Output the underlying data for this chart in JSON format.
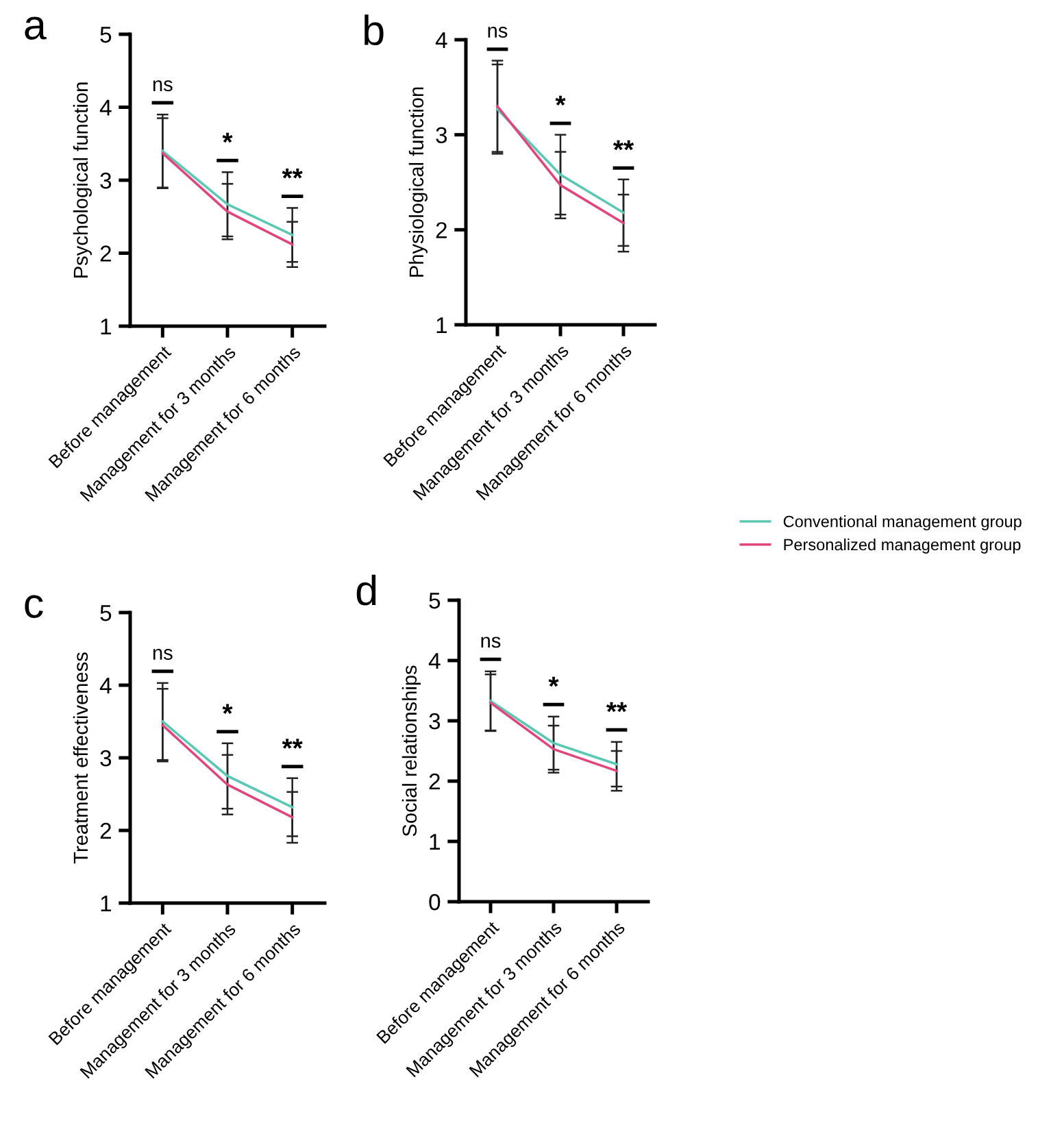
{
  "chart_data": [
    {
      "type": "line",
      "title": "a",
      "ylabel": "Psychological function",
      "categories": [
        "Before management",
        "Management for 3 months",
        "Management for 6 months"
      ],
      "ylim": [
        1,
        5
      ],
      "yticks": [
        1,
        2,
        3,
        4,
        5
      ],
      "grid": false,
      "legend": "right",
      "marker": "none",
      "line_style": "solid",
      "series": [
        {
          "name": "Conventional management group",
          "color": "#5cc8b4",
          "values": [
            3.4,
            2.67,
            2.25
          ],
          "errors": [
            0.5,
            0.44,
            0.37
          ]
        },
        {
          "name": "Personalized management group",
          "color": "#e0457b",
          "values": [
            3.37,
            2.57,
            2.12
          ],
          "errors": [
            0.48,
            0.38,
            0.31
          ]
        }
      ],
      "annotations": [
        "ns",
        "*",
        "**"
      ]
    },
    {
      "type": "line",
      "title": "b",
      "ylabel": "Physiological function",
      "categories": [
        "Before management",
        "Management for 3 months",
        "Management for 6 months"
      ],
      "ylim": [
        1,
        4
      ],
      "yticks": [
        1,
        2,
        3,
        4
      ],
      "grid": false,
      "legend": "right",
      "marker": "none",
      "line_style": "solid",
      "series": [
        {
          "name": "Conventional management group",
          "color": "#5cc8b4",
          "values": [
            3.27,
            2.58,
            2.18
          ],
          "errors": [
            0.47,
            0.42,
            0.35
          ]
        },
        {
          "name": "Personalized management group",
          "color": "#e0457b",
          "values": [
            3.3,
            2.47,
            2.07
          ],
          "errors": [
            0.48,
            0.35,
            0.3
          ]
        }
      ],
      "annotations": [
        "ns",
        "*",
        "**"
      ]
    },
    {
      "type": "line",
      "title": "c",
      "ylabel": "Treatment effectiveness",
      "categories": [
        "Before management",
        "Management for 3 months",
        "Management for 6 months"
      ],
      "ylim": [
        1,
        5
      ],
      "yticks": [
        1,
        2,
        3,
        4,
        5
      ],
      "grid": false,
      "legend": "right",
      "marker": "none",
      "line_style": "solid",
      "series": [
        {
          "name": "Conventional management group",
          "color": "#5cc8b4",
          "values": [
            3.5,
            2.75,
            2.32
          ],
          "errors": [
            0.53,
            0.45,
            0.4
          ]
        },
        {
          "name": "Personalized management group",
          "color": "#e0457b",
          "values": [
            3.45,
            2.63,
            2.18
          ],
          "errors": [
            0.5,
            0.41,
            0.35
          ]
        }
      ],
      "annotations": [
        "ns",
        "*",
        "**"
      ]
    },
    {
      "type": "line",
      "title": "d",
      "ylabel": "Social relationships",
      "categories": [
        "Before management",
        "Management for 3 months",
        "Management for 6 months"
      ],
      "ylim": [
        0,
        5
      ],
      "yticks": [
        0,
        1,
        2,
        3,
        4,
        5
      ],
      "grid": false,
      "legend": "right",
      "marker": "none",
      "line_style": "solid",
      "series": [
        {
          "name": "Conventional management group",
          "color": "#5cc8b4",
          "values": [
            3.33,
            2.63,
            2.28
          ],
          "errors": [
            0.49,
            0.44,
            0.37
          ]
        },
        {
          "name": "Personalized management group",
          "color": "#e0457b",
          "values": [
            3.3,
            2.53,
            2.17
          ],
          "errors": [
            0.47,
            0.39,
            0.33
          ]
        }
      ],
      "annotations": [
        "ns",
        "*",
        "**"
      ]
    }
  ]
}
